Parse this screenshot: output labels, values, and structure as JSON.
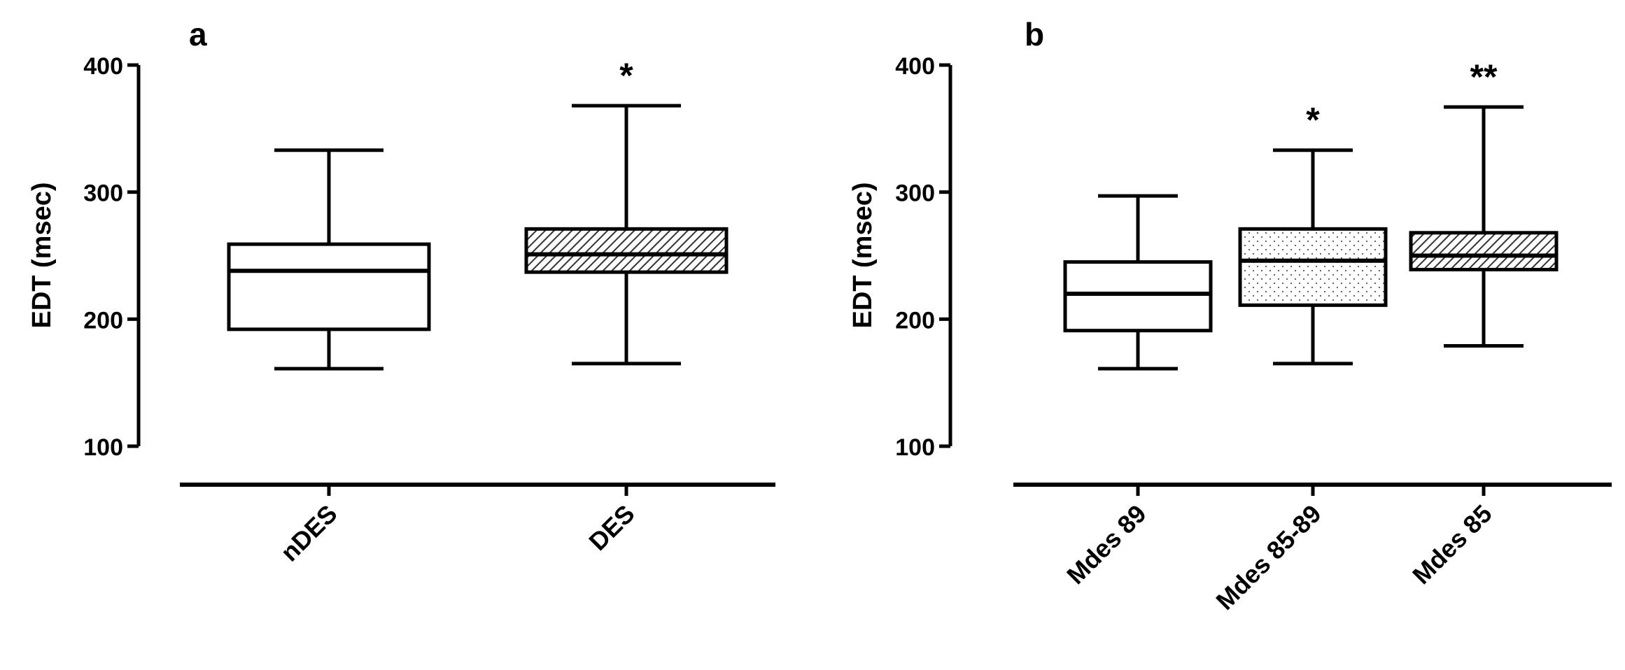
{
  "chart_data": [
    {
      "panel": "a",
      "type": "box",
      "ylabel": "EDT (msec)",
      "ylim": [
        100,
        400
      ],
      "yticks": [
        100,
        200,
        300,
        400
      ],
      "categories": [
        "nDES",
        "DES"
      ],
      "boxes": [
        {
          "label": "nDES",
          "min": 161,
          "q1": 192,
          "median": 238,
          "q3": 259,
          "max": 333,
          "fill": "white",
          "annotation": ""
        },
        {
          "label": "DES",
          "min": 165,
          "q1": 237,
          "median": 251,
          "q3": 271,
          "max": 368,
          "fill": "hatch",
          "annotation": "*"
        }
      ]
    },
    {
      "panel": "b",
      "type": "box",
      "ylabel": "EDT (msec)",
      "ylim": [
        100,
        400
      ],
      "yticks": [
        100,
        200,
        300,
        400
      ],
      "categories": [
        "Mdes 89",
        "Mdes 85-89",
        "Mdes 85"
      ],
      "boxes": [
        {
          "label": "Mdes 89",
          "min": 161,
          "q1": 191,
          "median": 220,
          "q3": 245,
          "max": 297,
          "fill": "white",
          "annotation": ""
        },
        {
          "label": "Mdes 85-89",
          "min": 165,
          "q1": 211,
          "median": 246,
          "q3": 271,
          "max": 333,
          "fill": "dots",
          "annotation": "*"
        },
        {
          "label": "Mdes 85",
          "min": 179,
          "q1": 239,
          "median": 250,
          "q3": 268,
          "max": 367,
          "fill": "hatch",
          "annotation": "**"
        }
      ]
    }
  ]
}
